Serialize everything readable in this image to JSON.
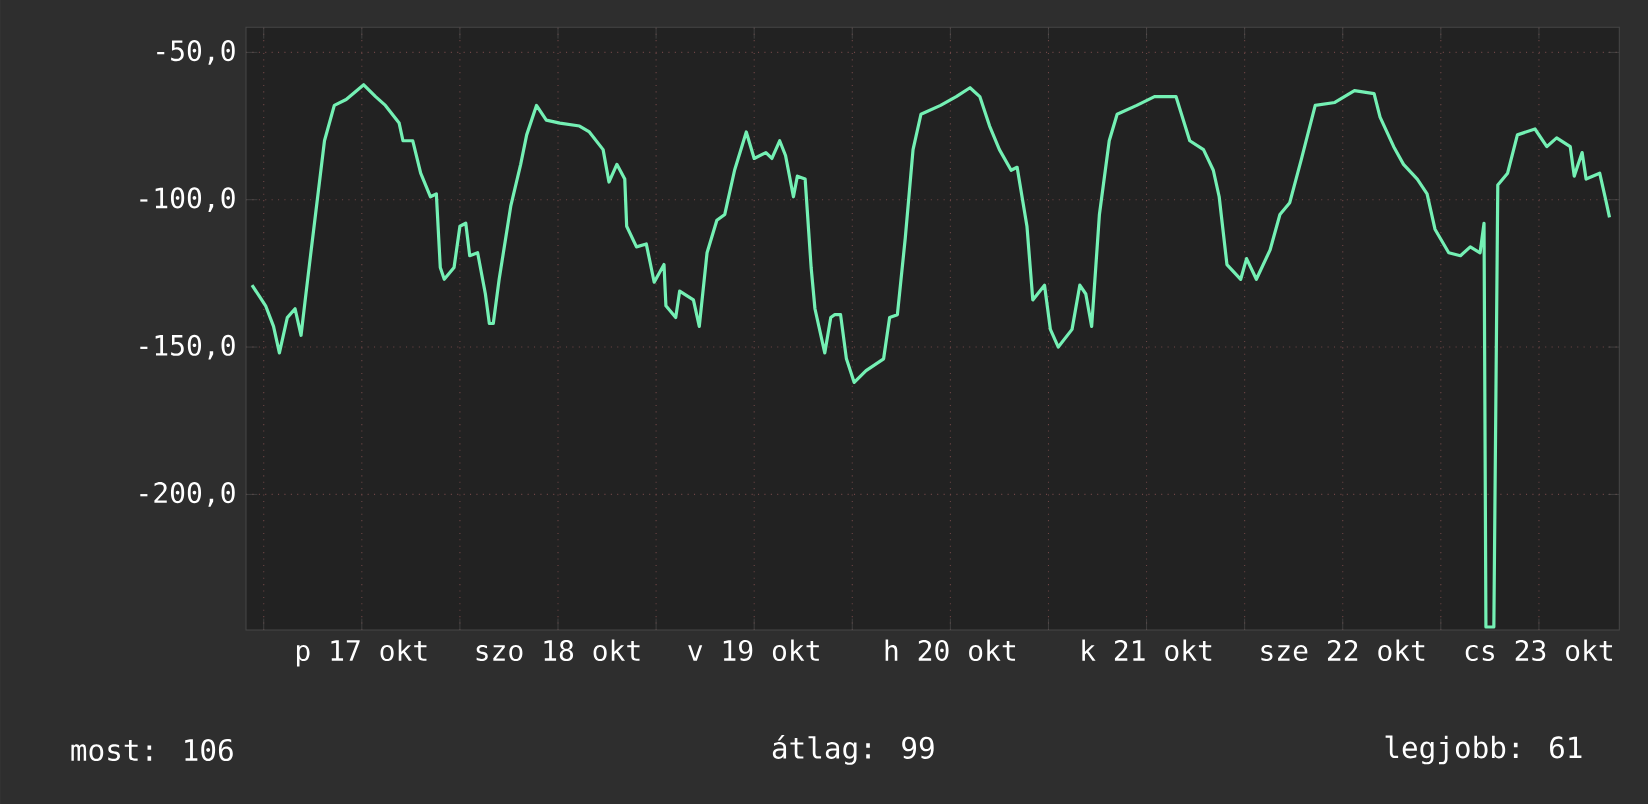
{
  "chart_data": {
    "type": "line",
    "x": [
      "--10-16T22:34",
      "--10-16T23:31",
      "--10-17T00:14",
      "--10-17T01:12",
      "--10-17T01:55",
      "--10-17T02:53",
      "--10-17T03:50",
      "--10-17T04:34",
      "--10-17T05:02",
      "--10-17T05:46",
      "--10-17T07:26",
      "--10-17T08:38",
      "--10-17T10:05",
      "--10-17T12:14",
      "--10-17T13:41",
      "--10-17T14:53",
      "--10-17T16:34",
      "--10-17T17:02",
      "--10-17T18:14",
      "--10-17T19:12",
      "--10-17T20:24",
      "--10-17T21:07",
      "--10-17T21:36",
      "--10-17T22:05",
      "--10-17T23:17",
      "--10-18T00:00",
      "--10-18T00:43",
      "--10-18T01:12",
      "--10-18T02:10",
      "--10-18T03:07",
      "--10-18T03:36",
      "--10-18T04:05",
      "--10-18T04:48",
      "--10-18T06:14",
      "--10-18T07:26",
      "--10-18T08:10",
      "--10-18T09:22",
      "--10-18T10:34",
      "--10-18T12:14",
      "--10-18T14:38",
      "--10-18T15:50",
      "--10-18T17:31",
      "--10-18T18:14",
      "--10-18T19:12",
      "--10-18T20:10",
      "--10-18T20:24",
      "--10-18T21:36",
      "--10-18T22:48",
      "--10-18T23:46",
      "--10-19T00:58",
      "--10-19T01:12",
      "--10-19T02:24",
      "--10-19T02:53",
      "--10-19T04:34",
      "--10-19T05:17",
      "--10-19T06:14",
      "--10-19T07:26",
      "--10-19T08:24",
      "--10-19T09:36",
      "--10-19T11:02",
      "--10-19T12:00",
      "--10-19T13:26",
      "--10-19T14:10",
      "--10-19T15:07",
      "--10-19T15:50",
      "--10-19T16:48",
      "--10-19T17:17",
      "--10-19T18:14",
      "--10-19T18:58",
      "--10-19T19:26",
      "--10-19T20:38",
      "--10-19T21:22",
      "--10-19T21:50",
      "--10-19T22:34",
      "--10-19T23:17",
      "--10-20T00:14",
      "--10-20T01:41",
      "--10-20T03:50",
      "--10-20T04:34",
      "--10-20T05:31",
      "--10-20T06:29",
      "--10-20T07:26",
      "--10-20T08:24",
      "--10-20T10:48",
      "--10-20T12:43",
      "--10-20T14:24",
      "--10-20T15:36",
      "--10-20T16:48",
      "--10-20T18:00",
      "--10-20T19:26",
      "--10-20T20:10",
      "--10-20T21:22",
      "--10-20T22:05",
      "--10-20T23:31",
      "--10-21T00:14",
      "--10-21T01:12",
      "--10-21T02:53",
      "--10-21T03:50",
      "--10-21T04:34",
      "--10-21T05:17",
      "--10-21T06:14",
      "--10-21T07:26",
      "--10-21T08:24",
      "--10-21T10:48",
      "--10-21T12:58",
      "--10-21T15:36",
      "--10-21T17:17",
      "--10-21T18:58",
      "--10-21T20:10",
      "--10-21T20:53",
      "--10-21T21:50",
      "--10-21T23:31",
      "--10-22T00:14",
      "--10-22T01:26",
      "--10-22T03:07",
      "--10-22T04:19",
      "--10-22T05:31",
      "--10-22T06:58",
      "--10-22T08:38",
      "--10-22T11:02",
      "--10-22T13:26",
      "--10-22T15:50",
      "--10-22T16:34",
      "--10-22T18:14",
      "--10-22T19:26",
      "--10-22T21:07",
      "--10-22T22:19",
      "--10-22T23:17",
      "--10-23T00:58",
      "--10-23T02:24",
      "--10-23T03:36",
      "--10-23T04:48",
      "--10-23T05:17",
      "--10-23T05:31",
      "--10-23T06:29",
      "--10-23T06:58",
      "--10-23T08:10",
      "--10-23T09:22",
      "--10-23T11:31",
      "--10-23T12:58",
      "--10-23T14:10",
      "--10-23T15:50",
      "--10-23T16:19",
      "--10-23T17:17",
      "--10-23T17:46",
      "--10-23T19:26",
      "--10-23T20:10",
      "--10-23T20:38"
    ],
    "series": [
      {
        "color": "#74f0b4",
        "values": [
          -129,
          -133,
          -136,
          -143,
          -152,
          -140,
          -137,
          -146,
          -135,
          -118,
          -80,
          -68,
          -66,
          -61,
          -65,
          -68,
          -74,
          -80,
          -80,
          -91,
          -99,
          -98,
          -123,
          -127,
          -123,
          -109,
          -108,
          -119,
          -118,
          -132,
          -142,
          -142,
          -127,
          -102,
          -88,
          -78,
          -68,
          -73,
          -74,
          -75,
          -77,
          -83,
          -94,
          -88,
          -93,
          -109,
          -116,
          -115,
          -128,
          -122,
          -136,
          -140,
          -131,
          -134,
          -143,
          -118,
          -107,
          -105,
          -90,
          -77,
          -86,
          -84,
          -86,
          -80,
          -85,
          -99,
          -92,
          -93,
          -123,
          -137,
          -152,
          -140,
          -139,
          -139,
          -154,
          -162,
          -158,
          -154,
          -140,
          -139,
          -113,
          -83,
          -71,
          -68,
          -65,
          -62,
          -65,
          -75,
          -83,
          -90,
          -89,
          -109,
          -134,
          -129,
          -144,
          -150,
          -144,
          -129,
          -132,
          -143,
          -105,
          -80,
          -71,
          -68,
          -65,
          -65,
          -80,
          -83,
          -90,
          -99,
          -122,
          -127,
          -120,
          -127,
          -117,
          -105,
          -101,
          -86,
          -68,
          -67,
          -63,
          -64,
          -72,
          -82,
          -88,
          -93,
          -98,
          -110,
          -118,
          -119,
          -116,
          -118,
          -108,
          -245,
          -245,
          -95,
          -91,
          -78,
          -76,
          -82,
          -79,
          -82,
          -92,
          -84,
          -93,
          -91,
          -100,
          -106
        ]
      }
    ],
    "xlim": [
      "--10-16T21:50",
      "--10-23T21:50"
    ],
    "ylim": [
      -246,
      -41.5
    ],
    "xticks": [
      {
        "value": "--10-17T00:00",
        "label": null
      },
      {
        "value": "--10-17T12:00",
        "label": "p 17 okt"
      },
      {
        "value": "--10-18T00:00",
        "label": null
      },
      {
        "value": "--10-18T12:00",
        "label": "szo 18 okt"
      },
      {
        "value": "--10-19T00:00",
        "label": null
      },
      {
        "value": "--10-19T12:00",
        "label": "v 19 okt"
      },
      {
        "value": "--10-20T00:00",
        "label": null
      },
      {
        "value": "--10-20T12:00",
        "label": "h 20 okt"
      },
      {
        "value": "--10-21T00:00",
        "label": null
      },
      {
        "value": "--10-21T12:00",
        "label": "k 21 okt"
      },
      {
        "value": "--10-22T00:00",
        "label": null
      },
      {
        "value": "--10-22T12:00",
        "label": "sze 22 okt"
      },
      {
        "value": "--10-23T00:00",
        "label": null
      },
      {
        "value": "--10-23T12:00",
        "label": "cs 23 okt"
      }
    ],
    "yticks": [
      {
        "value": -50,
        "label": "-50,0"
      },
      {
        "value": -100,
        "label": "-100,0"
      },
      {
        "value": -150,
        "label": "-150,0"
      },
      {
        "value": -200,
        "label": "-200,0"
      }
    ],
    "grid": true,
    "annotations": [
      "most: 106",
      "átlag: 99",
      "legjobb: 61"
    ]
  }
}
